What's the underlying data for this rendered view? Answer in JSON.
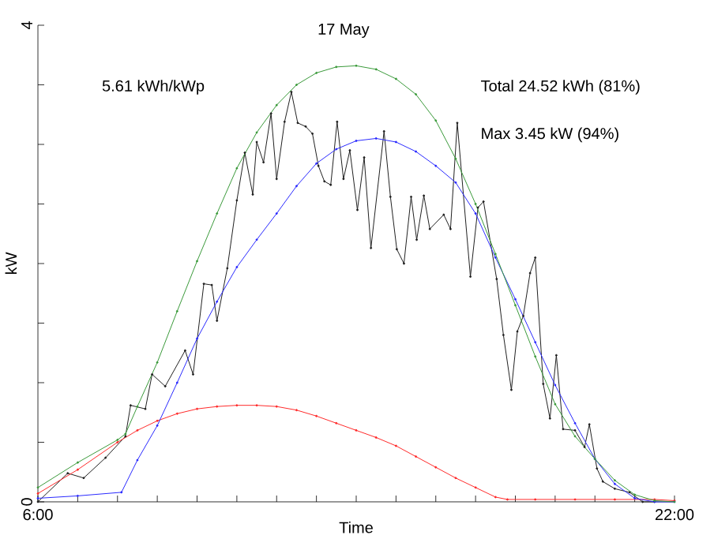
{
  "chart_data": {
    "type": "line",
    "title": "17 May",
    "xlabel": "Time",
    "ylabel": "kW",
    "annotations": [
      "5.61 kWh/kWp",
      "Total 24.52 kWh (81%)",
      "Max 3.45 kW (94%)"
    ],
    "xlim": [
      6,
      22
    ],
    "ylim": [
      0,
      4
    ],
    "xticks": [
      {
        "value": 6,
        "label": "6:00"
      },
      {
        "value": 7,
        "label": null
      },
      {
        "value": 8,
        "label": null
      },
      {
        "value": 9,
        "label": null
      },
      {
        "value": 10,
        "label": null
      },
      {
        "value": 11,
        "label": null
      },
      {
        "value": 12,
        "label": null
      },
      {
        "value": 13,
        "label": null
      },
      {
        "value": 14,
        "label": null
      },
      {
        "value": 15,
        "label": null
      },
      {
        "value": 16,
        "label": null
      },
      {
        "value": 17,
        "label": null
      },
      {
        "value": 18,
        "label": null
      },
      {
        "value": 19,
        "label": null
      },
      {
        "value": 20,
        "label": null
      },
      {
        "value": 21,
        "label": null
      },
      {
        "value": 22,
        "label": "22:00"
      }
    ],
    "yticks": [
      0,
      {
        "value": 0.5,
        "label": null
      },
      {
        "value": 1,
        "label": null
      },
      {
        "value": 1.5,
        "label": null
      },
      {
        "value": 2,
        "label": null
      },
      {
        "value": 2.5,
        "label": null
      },
      {
        "value": 3,
        "label": null
      },
      {
        "value": 3.5,
        "label": null
      },
      4
    ],
    "marker": "circle",
    "line_style": "solid",
    "series": [
      {
        "color": "#3a9a3a",
        "x": [
          6.0,
          7.0,
          8.0,
          8.2,
          8.5,
          9.0,
          9.5,
          10.0,
          10.5,
          11.0,
          11.5,
          12.0,
          12.5,
          13.0,
          13.5,
          14.0,
          14.5,
          15.0,
          15.5,
          16.0,
          16.5,
          17.0,
          17.5,
          18.0,
          18.5,
          19.0,
          19.5,
          20.0,
          20.5,
          21.0,
          21.5,
          22.0
        ],
        "values": [
          0.12,
          0.33,
          0.52,
          0.57,
          0.8,
          1.17,
          1.6,
          2.02,
          2.42,
          2.8,
          3.1,
          3.33,
          3.5,
          3.6,
          3.65,
          3.66,
          3.63,
          3.55,
          3.42,
          3.2,
          2.88,
          2.5,
          2.08,
          1.65,
          1.22,
          0.82,
          0.55,
          0.36,
          0.18,
          0.06,
          0.01,
          0
        ]
      },
      {
        "color": "#2a2aff",
        "x": [
          6.0,
          7.0,
          8.1,
          8.5,
          9.0,
          9.5,
          10.0,
          10.5,
          11.0,
          11.5,
          12.0,
          12.5,
          13.0,
          13.5,
          14.0,
          14.5,
          15.0,
          15.5,
          16.0,
          16.5,
          17.0,
          17.5,
          18.0,
          18.5,
          19.0,
          19.5,
          20.0,
          20.5,
          21.0,
          21.5,
          22.0
        ],
        "values": [
          0.03,
          0.05,
          0.08,
          0.35,
          0.64,
          1.0,
          1.37,
          1.68,
          1.97,
          2.2,
          2.42,
          2.65,
          2.84,
          2.96,
          3.03,
          3.05,
          3.02,
          2.94,
          2.82,
          2.68,
          2.42,
          2.05,
          1.7,
          1.34,
          0.98,
          0.66,
          0.36,
          0.15,
          0.03,
          0,
          0
        ]
      },
      {
        "color": "#ff2a2a",
        "x": [
          6.0,
          7.0,
          8.0,
          8.5,
          9.0,
          9.5,
          10.0,
          10.5,
          11.0,
          11.5,
          12.0,
          12.5,
          13.0,
          13.5,
          14.0,
          14.5,
          15.0,
          15.5,
          16.0,
          16.5,
          17.0,
          17.5,
          17.8,
          18.5,
          19.5,
          20.5,
          21.5,
          22.0
        ],
        "values": [
          0.07,
          0.27,
          0.5,
          0.6,
          0.68,
          0.74,
          0.78,
          0.8,
          0.81,
          0.81,
          0.8,
          0.77,
          0.72,
          0.66,
          0.6,
          0.54,
          0.47,
          0.38,
          0.29,
          0.2,
          0.12,
          0.04,
          0.02,
          0.02,
          0.02,
          0.02,
          0.02,
          0.01
        ]
      },
      {
        "color": "#202020",
        "x": [
          6.0,
          6.75,
          7.15,
          7.7,
          8.2,
          8.33,
          8.7,
          8.87,
          9.2,
          9.7,
          9.9,
          10.17,
          10.37,
          10.5,
          10.76,
          11.0,
          11.2,
          11.4,
          11.5,
          11.67,
          11.86,
          12.0,
          12.2,
          12.37,
          12.53,
          12.73,
          12.9,
          13.05,
          13.2,
          13.36,
          13.52,
          13.68,
          13.84,
          14.03,
          14.2,
          14.37,
          14.7,
          14.86,
          15.02,
          15.2,
          15.38,
          15.52,
          15.7,
          15.85,
          16.2,
          16.37,
          16.54,
          16.87,
          17.06,
          17.2,
          17.53,
          17.7,
          17.9,
          18.05,
          18.2,
          18.37,
          18.5,
          18.7,
          18.87,
          19.03,
          19.2,
          19.5,
          19.74,
          19.86,
          20.05,
          20.2,
          20.5,
          20.87,
          21.2,
          21.5
        ],
        "values": [
          0,
          0.24,
          0.2,
          0.37,
          0.55,
          0.81,
          0.78,
          1.07,
          0.97,
          1.27,
          1.07,
          1.83,
          1.82,
          1.52,
          1.96,
          2.53,
          2.93,
          2.58,
          3.02,
          2.85,
          3.26,
          2.71,
          3.19,
          3.44,
          3.18,
          3.15,
          3.09,
          2.82,
          2.69,
          2.66,
          3.19,
          2.71,
          2.95,
          2.45,
          2.89,
          2.13,
          3.11,
          2.56,
          2.12,
          2.0,
          2.56,
          2.2,
          2.57,
          2.29,
          2.41,
          2.29,
          3.18,
          1.89,
          2.47,
          2.52,
          1.87,
          1.4,
          0.94,
          1.43,
          1.56,
          1.92,
          2.05,
          0.99,
          0.7,
          1.23,
          0.61,
          0.6,
          0.46,
          0.65,
          0.28,
          0.17,
          0.11,
          0.08,
          0.0,
          0
        ]
      }
    ]
  }
}
